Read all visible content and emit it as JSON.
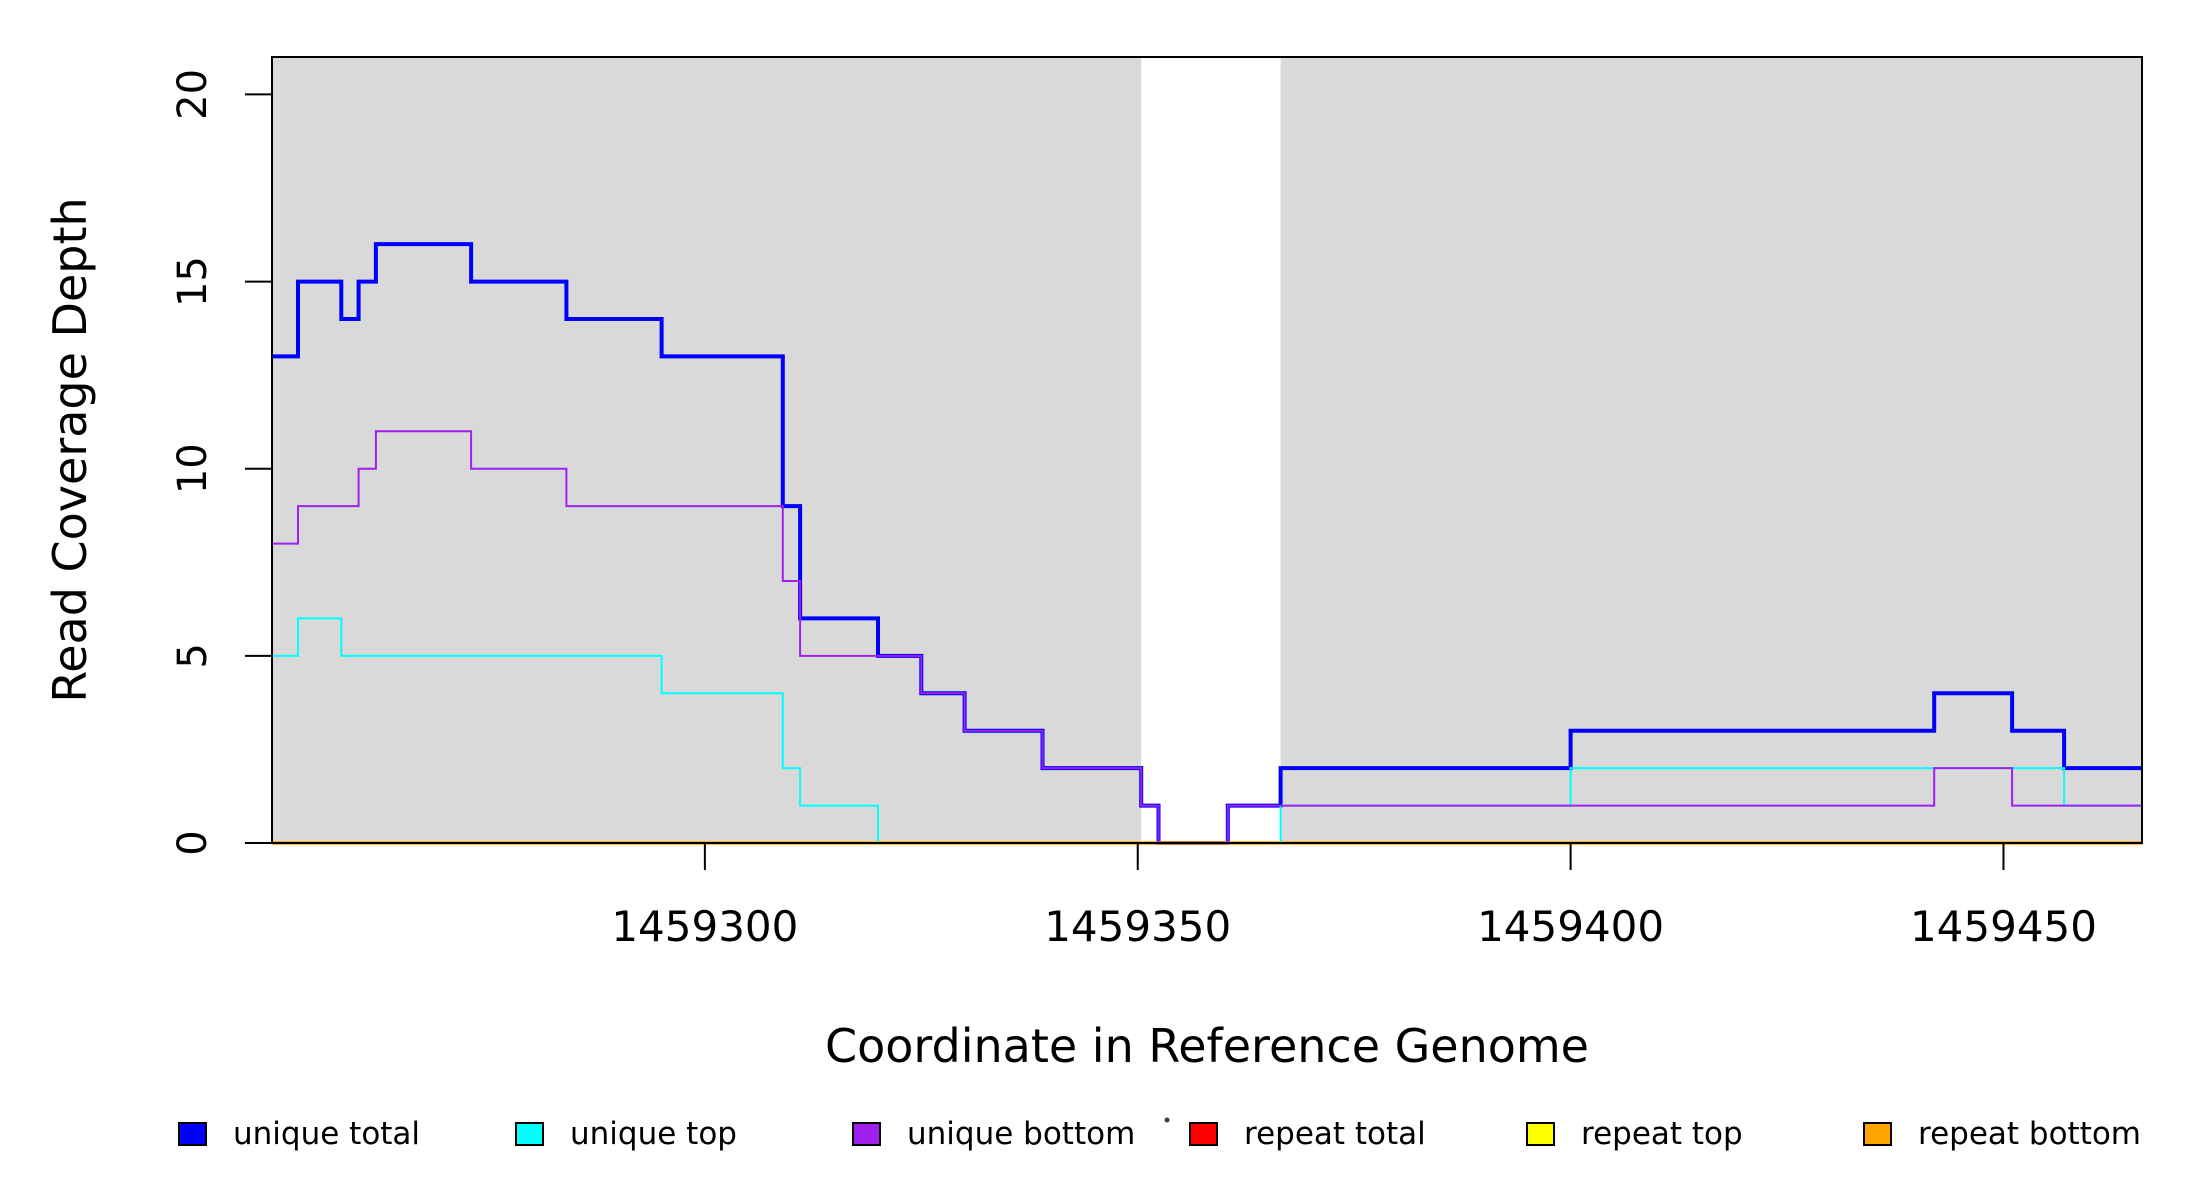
{
  "chart_data": {
    "type": "line",
    "variant": "step",
    "title": "",
    "xlabel": "Coordinate in Reference Genome",
    "ylabel": "Read Coverage Depth",
    "xlim": [
      1459250,
      1459466
    ],
    "ylim": [
      0,
      21
    ],
    "x_ticks": [
      1459300,
      1459350,
      1459400,
      1459450
    ],
    "y_ticks": [
      0,
      5,
      10,
      15,
      20
    ],
    "grid": false,
    "background_color": "#FFFFFF",
    "box_color": "#000000",
    "shaded_regions": {
      "color": "#D9D9D9",
      "ranges": [
        [
          1459250,
          1459350.4
        ],
        [
          1459366.5,
          1459466
        ]
      ]
    },
    "series": [
      {
        "name": "unique total",
        "color": "#0000FF",
        "width": 4,
        "points": [
          [
            1459250,
            13
          ],
          [
            1459253,
            15
          ],
          [
            1459258,
            14
          ],
          [
            1459260,
            15
          ],
          [
            1459262,
            16
          ],
          [
            1459273,
            15
          ],
          [
            1459284,
            14
          ],
          [
            1459295,
            13
          ],
          [
            1459309,
            9
          ],
          [
            1459311,
            6
          ],
          [
            1459320,
            5
          ],
          [
            1459325,
            4
          ],
          [
            1459330,
            3
          ],
          [
            1459339,
            2
          ],
          [
            1459350.4,
            1
          ],
          [
            1459352.4,
            0
          ],
          [
            1459360.4,
            1
          ],
          [
            1459366.5,
            2
          ],
          [
            1459400,
            3
          ],
          [
            1459442,
            4
          ],
          [
            1459451,
            3
          ],
          [
            1459457,
            2
          ]
        ]
      },
      {
        "name": "repeat total",
        "color": "#FF0000",
        "width": 3,
        "points": [
          [
            1459250,
            0
          ]
        ]
      },
      {
        "name": "repeat top",
        "color": "#FFFF00",
        "width": 3,
        "points": [
          [
            1459250,
            0
          ]
        ]
      },
      {
        "name": "repeat bottom",
        "color": "#FFA500",
        "width": 3.5,
        "points": [
          [
            1459250,
            0
          ]
        ]
      },
      {
        "name": "unique top",
        "color": "#00FFFF",
        "width": 2,
        "points": [
          [
            1459250,
            5
          ],
          [
            1459253,
            6
          ],
          [
            1459258,
            5
          ],
          [
            1459295,
            4
          ],
          [
            1459309,
            2
          ],
          [
            1459311,
            1
          ],
          [
            1459320,
            0
          ],
          [
            1459366.5,
            1
          ],
          [
            1459400,
            2
          ],
          [
            1459457,
            1
          ]
        ]
      },
      {
        "name": "unique bottom",
        "color": "#A020F0",
        "width": 2,
        "points": [
          [
            1459250,
            8
          ],
          [
            1459253,
            9
          ],
          [
            1459260,
            10
          ],
          [
            1459262,
            11
          ],
          [
            1459273,
            10
          ],
          [
            1459284,
            9
          ],
          [
            1459309,
            7
          ],
          [
            1459311,
            5
          ],
          [
            1459325,
            4
          ],
          [
            1459330,
            3
          ],
          [
            1459339,
            2
          ],
          [
            1459350.4,
            1
          ],
          [
            1459352.4,
            0
          ],
          [
            1459360.4,
            1
          ],
          [
            1459442,
            2
          ],
          [
            1459451,
            1
          ]
        ]
      }
    ],
    "legend": {
      "position": "bottom",
      "entries": [
        {
          "label": "unique total",
          "color": "#0000FF"
        },
        {
          "label": "unique top",
          "color": "#00FFFF"
        },
        {
          "label": "unique bottom",
          "color": "#A020F0"
        },
        {
          "label": "repeat total",
          "color": "#FF0000"
        },
        {
          "label": "repeat top",
          "color": "#FFFF00"
        },
        {
          "label": "repeat bottom",
          "color": "#FFA500"
        }
      ]
    },
    "annotation_dot": {
      "color": "#3F3F3F"
    }
  }
}
